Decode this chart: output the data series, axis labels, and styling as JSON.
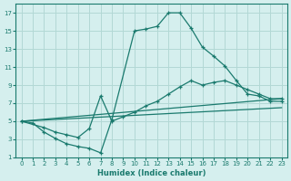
{
  "xlabel": "Humidex (Indice chaleur)",
  "bg_color": "#d5efee",
  "grid_color": "#b2d8d5",
  "line_color": "#1a7a6e",
  "xlim": [
    -0.5,
    23.5
  ],
  "ylim": [
    1,
    18
  ],
  "xticks": [
    0,
    1,
    2,
    3,
    4,
    5,
    6,
    7,
    8,
    9,
    10,
    11,
    12,
    13,
    14,
    15,
    16,
    17,
    18,
    19,
    20,
    21,
    22,
    23
  ],
  "yticks": [
    1,
    3,
    5,
    7,
    9,
    11,
    13,
    15,
    17
  ],
  "line1_x": [
    0,
    1,
    2,
    3,
    4,
    5,
    6,
    7,
    8,
    10,
    11,
    12,
    13,
    14,
    15,
    16,
    17,
    18,
    19,
    20,
    21,
    22,
    23
  ],
  "line1_y": [
    5.0,
    4.8,
    3.8,
    3.1,
    2.5,
    2.2,
    2.0,
    1.5,
    5.2,
    15.0,
    15.2,
    15.5,
    17.0,
    17.0,
    15.3,
    13.2,
    12.2,
    11.1,
    9.5,
    8.0,
    7.8,
    7.2,
    7.2
  ],
  "line2_x": [
    0,
    2,
    3,
    4,
    5,
    6,
    7,
    8,
    9,
    10,
    11,
    12,
    13,
    14,
    15,
    16,
    17,
    18,
    19,
    20,
    21,
    22,
    23
  ],
  "line2_y": [
    5.0,
    4.3,
    3.8,
    3.5,
    3.2,
    4.2,
    7.8,
    5.0,
    5.5,
    6.0,
    6.7,
    7.2,
    8.0,
    8.8,
    9.5,
    9.0,
    9.3,
    9.5,
    9.0,
    8.5,
    8.0,
    7.5,
    7.5
  ],
  "line3_x": [
    0,
    23
  ],
  "line3_y": [
    5.0,
    7.5
  ],
  "line4_x": [
    0,
    23
  ],
  "line4_y": [
    5.0,
    6.5
  ]
}
